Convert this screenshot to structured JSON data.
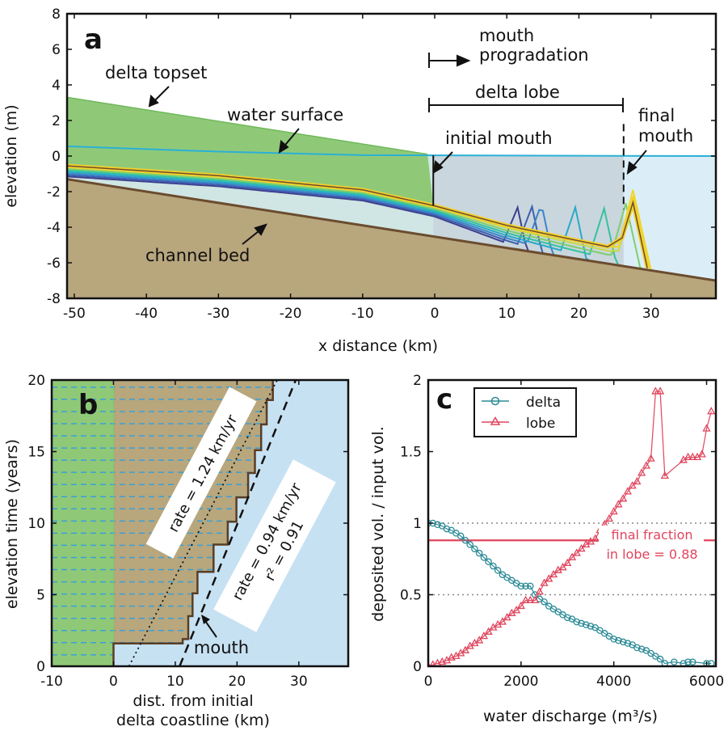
{
  "chart_data": [
    {
      "panel": "a",
      "type": "line",
      "xlabel": "x distance (km)",
      "ylabel": "elevation (m)",
      "xlim": [
        -51,
        39
      ],
      "ylim": [
        -8,
        8
      ],
      "xticks": [
        -50,
        -40,
        -30,
        -20,
        -10,
        0,
        10,
        20,
        30
      ],
      "yticks": [
        -8,
        -6,
        -4,
        -2,
        0,
        2,
        4,
        6,
        8
      ],
      "colors": {
        "topset": "#8fc978",
        "water_above": "#cfe6e4",
        "water_open": "#dbeef8",
        "lobe_region": "#c9d6dd",
        "bed": "#b8a67d",
        "bed_line": "#6b4c2f",
        "water_line": "#2ab0d6"
      },
      "topset": [
        [
          -51,
          3.3
        ],
        [
          -1,
          0.1
        ]
      ],
      "water_surface": [
        [
          -51,
          0.55
        ],
        [
          -30,
          0.25
        ],
        [
          -10,
          0.05
        ],
        [
          39,
          0.0
        ]
      ],
      "channel_bed": [
        [
          -51,
          -1.3
        ],
        [
          39,
          -7.0
        ]
      ],
      "deposit_top": [
        [
          -51,
          -0.55
        ],
        [
          -30,
          -1.1
        ],
        [
          -10,
          -1.9
        ],
        [
          0,
          -2.8
        ],
        [
          10,
          -3.9
        ],
        [
          18,
          -4.6
        ],
        [
          24,
          -5.1
        ],
        [
          26,
          -4.6
        ],
        [
          27.5,
          -2.6
        ],
        [
          29.5,
          -6.3
        ]
      ],
      "evolution_colors": [
        "#3f3f8f",
        "#3d5fb0",
        "#3b85c7",
        "#29a9c8",
        "#35c1a0",
        "#7fce6c",
        "#c9d943",
        "#f2d62b"
      ],
      "mouth_peaks_x": [
        11.5,
        13.5,
        14.8,
        19.5,
        23.5,
        26.5,
        27.5
      ],
      "vertical_markers_x": [
        -0.2,
        26.2
      ],
      "annotations": [
        "a",
        "mouth",
        "progradation",
        "delta topset",
        "delta lobe",
        "water surface",
        "initial mouth",
        "final",
        "mouth",
        "channel bed"
      ]
    },
    {
      "panel": "b",
      "type": "line",
      "xlabel": [
        "dist. from initial",
        "delta coastline (km)"
      ],
      "ylabel": "elevation time (years)",
      "xlim": [
        -10,
        38
      ],
      "ylim": [
        0,
        20
      ],
      "xticks": [
        -10,
        0,
        10,
        20,
        30
      ],
      "yticks": [
        0,
        5,
        10,
        15,
        20
      ],
      "mouth_position": [
        [
          0,
          0
        ],
        [
          0,
          1.6
        ],
        [
          11.2,
          1.6
        ],
        [
          11.2,
          1.9
        ],
        [
          12.1,
          1.9
        ],
        [
          12.1,
          3.5
        ],
        [
          12.8,
          3.5
        ],
        [
          12.8,
          5.1
        ],
        [
          13.6,
          5.1
        ],
        [
          13.6,
          6.6
        ],
        [
          16.2,
          6.6
        ],
        [
          16.2,
          8.5
        ],
        [
          18.5,
          8.5
        ],
        [
          18.5,
          10.1
        ],
        [
          19.9,
          10.1
        ],
        [
          19.9,
          11.8
        ],
        [
          21.8,
          11.8
        ],
        [
          21.8,
          13.5
        ],
        [
          22.9,
          13.5
        ],
        [
          22.9,
          15.1
        ],
        [
          23.9,
          15.1
        ],
        [
          23.9,
          16.9
        ],
        [
          24.8,
          16.9
        ],
        [
          24.8,
          18.6
        ],
        [
          25.8,
          18.6
        ],
        [
          25.8,
          20
        ]
      ],
      "fit_lines": [
        {
          "label": "rate = 1.24 km/yr",
          "points": [
            [
              2.5,
              0
            ],
            [
              26.5,
              20
            ]
          ],
          "style": "dotted"
        },
        {
          "label": [
            "rate = 0.94 km/yr",
            "r² = 0.91"
          ],
          "points": [
            [
              10.7,
              0
            ],
            [
              29.5,
              20
            ]
          ],
          "style": "dashed"
        }
      ],
      "annotations": [
        "b",
        "mouth"
      ]
    },
    {
      "panel": "c",
      "type": "line",
      "xlabel": "water discharge (m³/s)",
      "ylabel": "deposited vol. / input vol.",
      "xlim": [
        0,
        6200
      ],
      "ylim": [
        0,
        2
      ],
      "xticks": [
        0,
        2000,
        4000,
        6000
      ],
      "yticks": [
        0,
        0.5,
        1,
        1.5,
        2
      ],
      "ref_lines": [
        1,
        0.5
      ],
      "final_fraction": 0.88,
      "final_fraction_label": [
        "final fraction",
        "in lobe = 0.88"
      ],
      "series": [
        {
          "name": "delta",
          "color": "#2a8a96",
          "marker": "circle",
          "x": [
            0,
            100,
            200,
            300,
            400,
            500,
            600,
            700,
            800,
            900,
            1000,
            1100,
            1200,
            1300,
            1400,
            1500,
            1600,
            1700,
            1800,
            1900,
            2000,
            2100,
            2200,
            2300,
            2400,
            2500,
            2600,
            2700,
            2800,
            2900,
            3000,
            3100,
            3200,
            3300,
            3400,
            3500,
            3600,
            3700,
            3800,
            3900,
            4000,
            4100,
            4200,
            4300,
            4400,
            4500,
            4600,
            4700,
            4800,
            4900,
            5000,
            5100,
            5300,
            5500,
            5600,
            5700,
            6000,
            6100
          ],
          "values": [
            1.0,
            1.0,
            0.99,
            0.98,
            0.96,
            0.95,
            0.93,
            0.91,
            0.88,
            0.85,
            0.82,
            0.79,
            0.76,
            0.73,
            0.7,
            0.67,
            0.64,
            0.62,
            0.6,
            0.58,
            0.56,
            0.56,
            0.56,
            0.5,
            0.47,
            0.45,
            0.42,
            0.4,
            0.38,
            0.36,
            0.34,
            0.33,
            0.31,
            0.3,
            0.29,
            0.28,
            0.27,
            0.25,
            0.23,
            0.21,
            0.19,
            0.18,
            0.17,
            0.16,
            0.15,
            0.13,
            0.12,
            0.11,
            0.09,
            0.07,
            0.05,
            0.02,
            0.03,
            0.02,
            0.03,
            0.03,
            0.02,
            0.02
          ]
        },
        {
          "name": "lobe",
          "color": "#e0455d",
          "marker": "triangle",
          "x": [
            0,
            100,
            200,
            300,
            400,
            500,
            600,
            700,
            800,
            900,
            1000,
            1100,
            1200,
            1300,
            1400,
            1500,
            1600,
            1700,
            1800,
            1900,
            2000,
            2100,
            2200,
            2300,
            2400,
            2500,
            2600,
            2700,
            2800,
            2900,
            3000,
            3100,
            3200,
            3300,
            3400,
            3500,
            3600,
            3700,
            3800,
            3900,
            4000,
            4100,
            4200,
            4300,
            4400,
            4500,
            4600,
            4700,
            4800,
            4900,
            5000,
            5100,
            5500,
            5600,
            5700,
            5800,
            5900,
            6000,
            6100
          ],
          "values": [
            0.0,
            0.01,
            0.02,
            0.03,
            0.04,
            0.06,
            0.07,
            0.09,
            0.11,
            0.14,
            0.16,
            0.18,
            0.21,
            0.24,
            0.27,
            0.29,
            0.31,
            0.34,
            0.37,
            0.39,
            0.42,
            0.46,
            0.46,
            0.46,
            0.52,
            0.58,
            0.61,
            0.64,
            0.67,
            0.69,
            0.72,
            0.76,
            0.79,
            0.82,
            0.85,
            0.87,
            0.89,
            0.95,
            0.99,
            1.03,
            1.08,
            1.13,
            1.17,
            1.22,
            1.26,
            1.29,
            1.35,
            1.4,
            1.45,
            1.92,
            1.92,
            1.33,
            1.44,
            1.46,
            1.46,
            1.46,
            1.48,
            1.66,
            1.78
          ]
        }
      ],
      "annotations": [
        "c"
      ]
    }
  ]
}
